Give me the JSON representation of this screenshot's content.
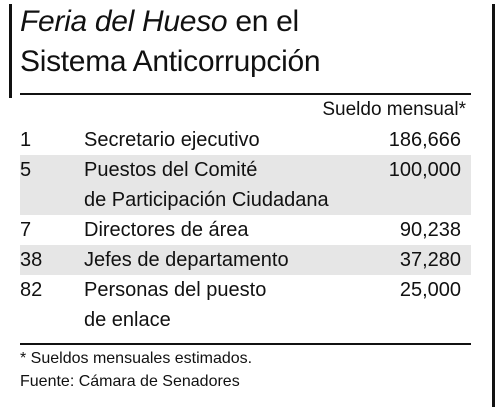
{
  "chart_data": {
    "type": "table",
    "title": {
      "italic_part": "Feria del Hueso",
      "rest_line1": " en el",
      "line2": "Sistema Anticorrupción"
    },
    "salary_header": "Sueldo mensual*",
    "rows": [
      {
        "count": "1",
        "position": "Secretario ejecutivo",
        "salary": "186,666"
      },
      {
        "count": "5",
        "position": "Puestos del Comité\nde Participación Ciudadana",
        "salary": "100,000"
      },
      {
        "count": "7",
        "position": "Directores de área",
        "salary": "90,238"
      },
      {
        "count": "38",
        "position": "Jefes de departamento",
        "salary": "37,280"
      },
      {
        "count": "82",
        "position": "Personas del puesto\nde enlace",
        "salary": "25,000"
      }
    ],
    "note": "* Sueldos mensuales estimados.",
    "source": "Fuente: Cámara de Senadores"
  },
  "colors": {
    "text": "#111111",
    "row_shade": "#e6e6e6",
    "background": "#ffffff"
  }
}
